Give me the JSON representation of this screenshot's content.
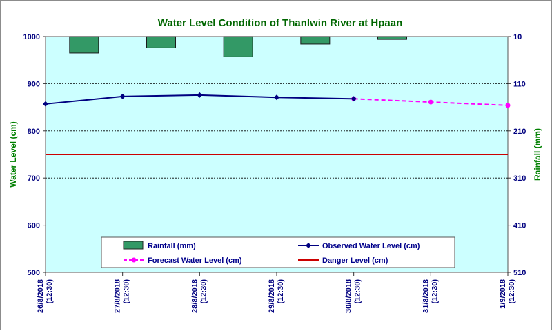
{
  "chart_data": {
    "type": "line",
    "title": "Water Level Condition of Thanlwin  River at  Hpaan",
    "ylabel": "Water Level (cm)",
    "y2label": "Rainfall (mm)",
    "categories": [
      [
        "26/8/2018",
        "(12:30)"
      ],
      [
        "27/8/2018",
        "(12:30)"
      ],
      [
        "28/8/2018",
        "(12:30)"
      ],
      [
        "29/8/2018",
        "(12:30)"
      ],
      [
        "30/8/2018",
        "(12:30)"
      ],
      [
        "31/8/2018",
        "(12:30)"
      ],
      [
        "1/9/2018",
        "(12:30)"
      ]
    ],
    "ylim": [
      500,
      1000
    ],
    "yticks": [
      500,
      600,
      700,
      800,
      900,
      1000
    ],
    "y2lim": [
      10,
      510
    ],
    "y2ticks": [
      10,
      110,
      210,
      310,
      410,
      510
    ],
    "y2_inverted": true,
    "grid": "horizontal dashed",
    "legend_placement": "bottom-center",
    "series": [
      {
        "name": "Rainfall (mm)",
        "kind": "bar",
        "axis": "right",
        "color": "#339966",
        "values": [
          45,
          34,
          53,
          26,
          16,
          null,
          null
        ]
      },
      {
        "name": "Observed Water Level (cm)",
        "kind": "line",
        "axis": "left",
        "color": "#000080",
        "marker": "diamond",
        "values": [
          857,
          873,
          876,
          871,
          868,
          null,
          null
        ]
      },
      {
        "name": "Forecast Water Level (cm)",
        "kind": "line",
        "axis": "left",
        "color": "#FF00FF",
        "marker": "circle",
        "dashed": true,
        "values": [
          null,
          null,
          null,
          null,
          868,
          861,
          854
        ]
      },
      {
        "name": "Danger Level (cm)",
        "kind": "line",
        "axis": "left",
        "color": "#CC0000",
        "values": [
          750,
          750,
          750,
          750,
          750,
          750,
          750
        ]
      }
    ],
    "colors": {
      "title": "#006600",
      "axis_label": "#008000",
      "tick": "#00007F",
      "plot_bg": "#CCFFFF",
      "legend_text": "#00008B"
    }
  }
}
